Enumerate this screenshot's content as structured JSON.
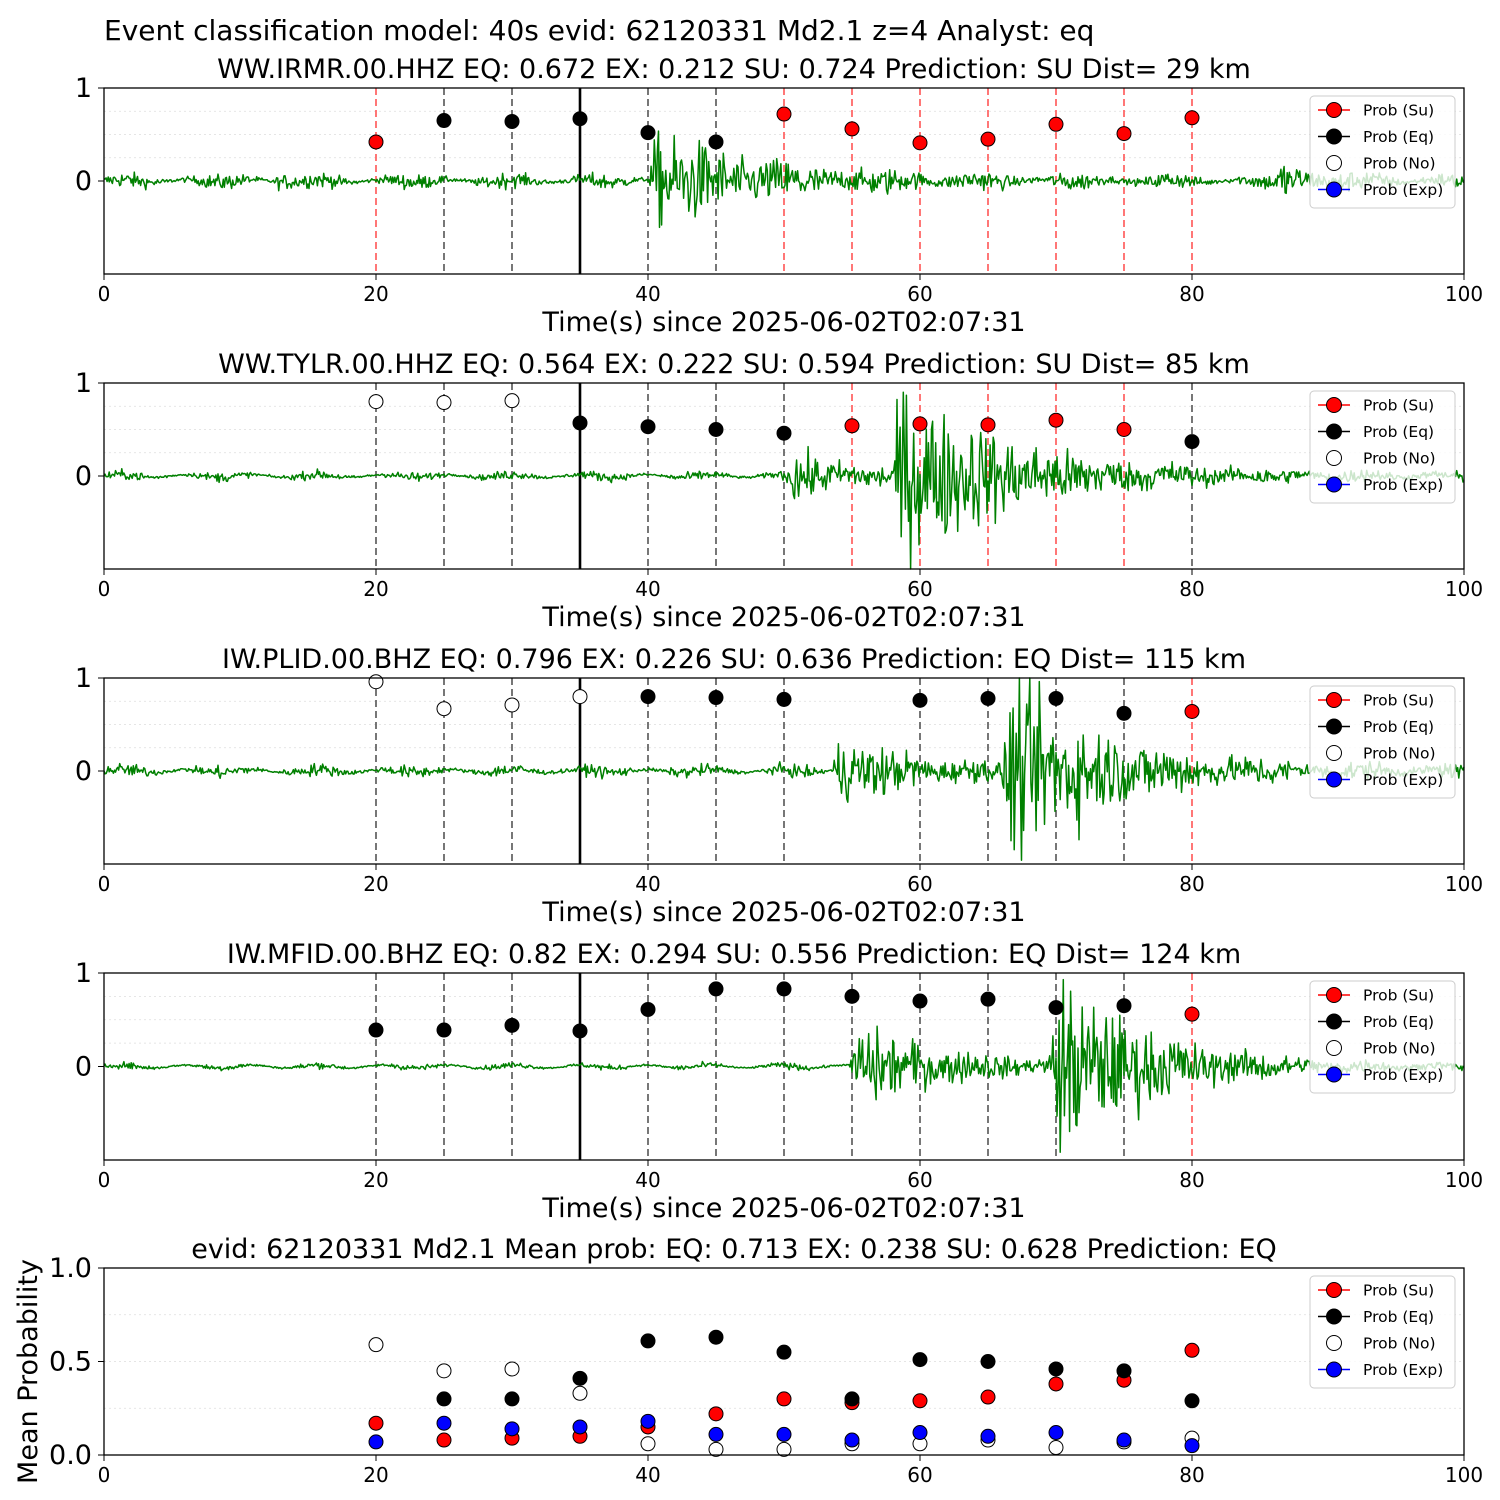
{
  "figure_title": "Event classification model: 40s evid: 62120331 Md2.1 z=4 Analyst: eq",
  "legend_entries": [
    "Prob (Su)",
    "Prob (Eq)",
    "Prob (No)",
    "Prob (Exp)"
  ],
  "colors": {
    "su": "#ff0000",
    "eq": "#000000",
    "no": "#ffffff",
    "exp": "#0000ff",
    "waveform": "#008000",
    "red_line": "#ff5555",
    "black_dash": "#555555",
    "origin_line": "#000000"
  },
  "chart_data": [
    {
      "type": "scatter",
      "title": "WW.IRMR.00.HHZ   EQ: 0.672  EX: 0.212  SU: 0.724   Prediction: SU    Dist= 29 km",
      "xlabel": "Time(s) since 2025-06-02T02:07:31",
      "ylabel": "",
      "xlim": [
        0,
        100
      ],
      "xticks": [
        "0",
        "20",
        "40",
        "60",
        "80",
        "100"
      ],
      "yticks": [
        "1",
        "0"
      ],
      "origin_time": 35,
      "waveform": {
        "noise": 0.05,
        "events": [
          [
            12.5,
            0.12,
            0.8
          ],
          [
            40,
            0.5,
            8
          ],
          [
            86,
            0.18,
            3
          ]
        ]
      },
      "points": [
        {
          "x": 20,
          "y": 0.42,
          "class": "su"
        },
        {
          "x": 25,
          "y": 0.65,
          "class": "eq"
        },
        {
          "x": 30,
          "y": 0.64,
          "class": "eq"
        },
        {
          "x": 35,
          "y": 0.67,
          "class": "eq"
        },
        {
          "x": 40,
          "y": 0.52,
          "class": "eq"
        },
        {
          "x": 45,
          "y": 0.42,
          "class": "eq"
        },
        {
          "x": 50,
          "y": 0.72,
          "class": "su"
        },
        {
          "x": 55,
          "y": 0.56,
          "class": "su"
        },
        {
          "x": 60,
          "y": 0.41,
          "class": "su"
        },
        {
          "x": 65,
          "y": 0.45,
          "class": "su"
        },
        {
          "x": 70,
          "y": 0.61,
          "class": "su"
        },
        {
          "x": 75,
          "y": 0.51,
          "class": "su"
        },
        {
          "x": 80,
          "y": 0.68,
          "class": "su"
        }
      ]
    },
    {
      "type": "scatter",
      "title": "WW.TYLR.00.HHZ   EQ: 0.564  EX: 0.222  SU: 0.594   Prediction: SU    Dist= 85 km",
      "xlabel": "Time(s) since 2025-06-02T02:07:31",
      "ylabel": "",
      "xlim": [
        0,
        100
      ],
      "xticks": [
        "0",
        "20",
        "40",
        "60",
        "80",
        "100"
      ],
      "yticks": [
        "1",
        "0"
      ],
      "origin_time": 35,
      "waveform": {
        "noise": 0.03,
        "events": [
          [
            50,
            0.25,
            6
          ],
          [
            58,
            0.9,
            9
          ]
        ]
      },
      "points": [
        {
          "x": 20,
          "y": 0.8,
          "class": "no"
        },
        {
          "x": 25,
          "y": 0.79,
          "class": "no"
        },
        {
          "x": 30,
          "y": 0.81,
          "class": "no"
        },
        {
          "x": 35,
          "y": 0.57,
          "class": "eq"
        },
        {
          "x": 40,
          "y": 0.53,
          "class": "eq"
        },
        {
          "x": 45,
          "y": 0.5,
          "class": "eq"
        },
        {
          "x": 50,
          "y": 0.46,
          "class": "eq"
        },
        {
          "x": 55,
          "y": 0.54,
          "class": "su"
        },
        {
          "x": 60,
          "y": 0.56,
          "class": "su"
        },
        {
          "x": 65,
          "y": 0.55,
          "class": "su"
        },
        {
          "x": 70,
          "y": 0.6,
          "class": "su"
        },
        {
          "x": 75,
          "y": 0.5,
          "class": "su"
        },
        {
          "x": 80,
          "y": 0.37,
          "class": "eq"
        }
      ]
    },
    {
      "type": "scatter",
      "title": "IW.PLID.00.BHZ   EQ: 0.796  EX: 0.226  SU: 0.636   Prediction: EQ    Dist= 115 km",
      "xlabel": "Time(s) since 2025-06-02T02:07:31",
      "ylabel": "",
      "xlim": [
        0,
        100
      ],
      "xticks": [
        "0",
        "20",
        "40",
        "60",
        "80",
        "100"
      ],
      "yticks": [
        "1",
        "0"
      ],
      "origin_time": 35,
      "waveform": {
        "noise": 0.04,
        "events": [
          [
            53.5,
            0.35,
            6
          ],
          [
            66,
            0.9,
            8
          ]
        ]
      },
      "points": [
        {
          "x": 20,
          "y": 0.96,
          "class": "no"
        },
        {
          "x": 25,
          "y": 0.67,
          "class": "no"
        },
        {
          "x": 30,
          "y": 0.71,
          "class": "no"
        },
        {
          "x": 35,
          "y": 0.8,
          "class": "no"
        },
        {
          "x": 40,
          "y": 0.8,
          "class": "eq"
        },
        {
          "x": 45,
          "y": 0.79,
          "class": "eq"
        },
        {
          "x": 50,
          "y": 0.77,
          "class": "eq"
        },
        {
          "x": 60,
          "y": 0.76,
          "class": "eq"
        },
        {
          "x": 65,
          "y": 0.78,
          "class": "eq"
        },
        {
          "x": 70,
          "y": 0.78,
          "class": "eq"
        },
        {
          "x": 75,
          "y": 0.62,
          "class": "eq"
        },
        {
          "x": 80,
          "y": 0.64,
          "class": "su"
        }
      ]
    },
    {
      "type": "scatter",
      "title": "IW.MFID.00.BHZ   EQ: 0.82  EX: 0.294  SU: 0.556   Prediction: EQ    Dist= 124 km",
      "xlabel": "Time(s) since 2025-06-02T02:07:31",
      "ylabel": "",
      "xlim": [
        0,
        100
      ],
      "xticks": [
        "0",
        "20",
        "40",
        "60",
        "80",
        "100"
      ],
      "yticks": [
        "1",
        "0"
      ],
      "origin_time": 35,
      "waveform": {
        "noise": 0.02,
        "events": [
          [
            54.8,
            0.45,
            7
          ],
          [
            69.5,
            0.95,
            7
          ]
        ]
      },
      "points": [
        {
          "x": 20,
          "y": 0.39,
          "class": "eq"
        },
        {
          "x": 25,
          "y": 0.39,
          "class": "eq"
        },
        {
          "x": 30,
          "y": 0.44,
          "class": "eq"
        },
        {
          "x": 35,
          "y": 0.38,
          "class": "eq"
        },
        {
          "x": 40,
          "y": 0.61,
          "class": "eq"
        },
        {
          "x": 45,
          "y": 0.83,
          "class": "eq"
        },
        {
          "x": 50,
          "y": 0.83,
          "class": "eq"
        },
        {
          "x": 55,
          "y": 0.75,
          "class": "eq"
        },
        {
          "x": 60,
          "y": 0.7,
          "class": "eq"
        },
        {
          "x": 65,
          "y": 0.72,
          "class": "eq"
        },
        {
          "x": 70,
          "y": 0.63,
          "class": "eq"
        },
        {
          "x": 75,
          "y": 0.65,
          "class": "eq"
        },
        {
          "x": 80,
          "y": 0.56,
          "class": "su"
        }
      ]
    },
    {
      "type": "scatter",
      "title": "evid: 62120331  Md2.1   Mean prob:   EQ: 0.713  EX: 0.238  SU: 0.628   Prediction: EQ",
      "xlabel": "",
      "ylabel": "Mean Probability",
      "xlim": [
        0,
        100
      ],
      "ylim": [
        0,
        1
      ],
      "xticks": [
        "0",
        "20",
        "40",
        "60",
        "80",
        "100"
      ],
      "yticks": [
        "1.0",
        "0.5",
        "0.0"
      ],
      "series": [
        {
          "class": "su",
          "x": [
            20,
            25,
            30,
            35,
            40,
            45,
            50,
            55,
            60,
            65,
            70,
            75,
            80
          ],
          "y": [
            0.17,
            0.08,
            0.09,
            0.1,
            0.15,
            0.22,
            0.3,
            0.28,
            0.29,
            0.31,
            0.38,
            0.4,
            0.56
          ]
        },
        {
          "class": "eq",
          "x": [
            25,
            30,
            35,
            40,
            45,
            50,
            55,
            60,
            65,
            70,
            75,
            80
          ],
          "y": [
            0.3,
            0.3,
            0.41,
            0.61,
            0.63,
            0.55,
            0.3,
            0.51,
            0.5,
            0.46,
            0.45,
            0.29
          ]
        },
        {
          "class": "no",
          "x": [
            20,
            25,
            30,
            35,
            40,
            45,
            50,
            55,
            60,
            65,
            70,
            75,
            80
          ],
          "y": [
            0.59,
            0.45,
            0.46,
            0.33,
            0.06,
            0.03,
            0.03,
            0.06,
            0.06,
            0.08,
            0.04,
            0.07,
            0.09
          ]
        },
        {
          "class": "exp",
          "x": [
            20,
            25,
            30,
            35,
            40,
            45,
            50,
            55,
            60,
            65,
            70,
            75,
            80
          ],
          "y": [
            0.07,
            0.17,
            0.14,
            0.15,
            0.18,
            0.11,
            0.11,
            0.08,
            0.12,
            0.1,
            0.12,
            0.08,
            0.05
          ]
        }
      ]
    }
  ]
}
